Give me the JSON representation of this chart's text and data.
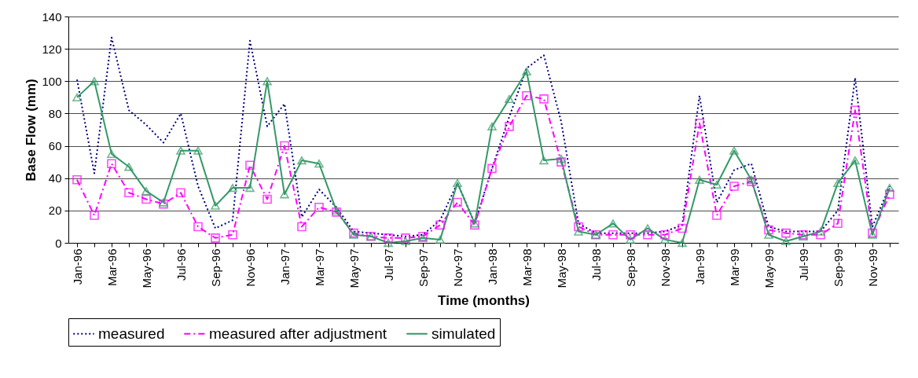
{
  "chart_data": {
    "type": "line",
    "xlabel": "Time (months)",
    "ylabel": "Base Flow (mm)",
    "categories": [
      "Jan-96",
      null,
      "Mar-96",
      null,
      "May-96",
      null,
      "Jul-96",
      null,
      "Sep-96",
      null,
      "Nov-96",
      null,
      "Jan-97",
      null,
      "Mar-97",
      null,
      "May-97",
      null,
      "Jul-97",
      null,
      "Sep-97",
      null,
      "Nov-97",
      null,
      "Jan-98",
      null,
      "Mar-98",
      null,
      "May-98",
      null,
      "Jul-98",
      null,
      "Sep-98",
      null,
      "Nov-98",
      null,
      "Jan-99",
      null,
      "Mar-99",
      null,
      "May-99",
      null,
      "Jul-99",
      null,
      "Sep-99",
      null,
      "Nov-99",
      null
    ],
    "series": [
      {
        "name": "measured",
        "color": "#000080",
        "line_style": "dotted",
        "marker": "none",
        "values": [
          101,
          43,
          127,
          82,
          73,
          62,
          80,
          35,
          9,
          14,
          125,
          72,
          86,
          16,
          33,
          22,
          7,
          6,
          5,
          4,
          5,
          14,
          37,
          12,
          46,
          78,
          108,
          116,
          75,
          12,
          6,
          6,
          6,
          6,
          7,
          11,
          91,
          25,
          45,
          49,
          10,
          7,
          7,
          7,
          20,
          102,
          10,
          35
        ]
      },
      {
        "name": "measured after adjustment",
        "color": "#ff00ff",
        "line_style": "dashed",
        "marker": "square",
        "values": [
          39,
          17,
          49,
          31,
          27,
          24,
          31,
          10,
          3,
          5,
          48,
          27,
          60,
          10,
          22,
          19,
          6,
          4,
          3,
          3,
          4,
          11,
          25,
          11,
          46,
          72,
          91,
          89,
          50,
          10,
          5,
          5,
          5,
          5,
          5,
          9,
          74,
          17,
          35,
          38,
          8,
          6,
          5,
          5,
          12,
          82,
          6,
          30
        ]
      },
      {
        "name": "simulated",
        "color": "#339966",
        "line_style": "solid",
        "marker": "triangle",
        "values": [
          90,
          100,
          55,
          47,
          32,
          25,
          57,
          57,
          23,
          34,
          34,
          100,
          30,
          51,
          49,
          20,
          5,
          4,
          0,
          1,
          3,
          2,
          37,
          12,
          72,
          89,
          106,
          51,
          52,
          7,
          5,
          12,
          2,
          9,
          2,
          0,
          39,
          36,
          57,
          39,
          5,
          1,
          4,
          7,
          37,
          51,
          5,
          34
        ]
      }
    ],
    "ylim": [
      0,
      140
    ],
    "yticks": [
      0,
      20,
      40,
      60,
      80,
      100,
      120,
      140
    ],
    "grid": "y",
    "legend": "bottom"
  }
}
